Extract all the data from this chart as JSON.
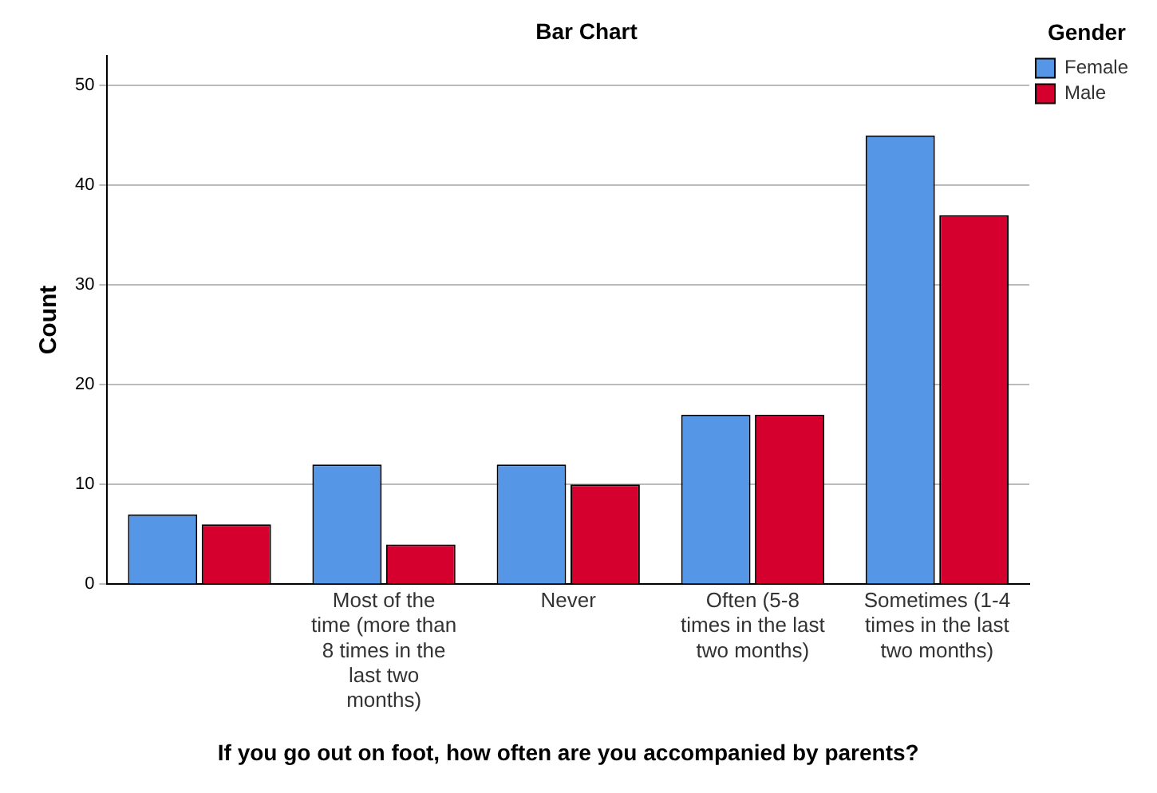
{
  "chart_data": {
    "type": "bar",
    "title": "Bar Chart",
    "xlabel": "If you go out on foot, how often are you accompanied by parents?",
    "ylabel": "Count",
    "legend_title": "Gender",
    "categories": [
      null,
      "Most of the time (more than 8 times in the last two months)",
      "Never",
      "Often (5-8 times in the last two months)",
      "Sometimes (1-4 times in the last two months)"
    ],
    "series": [
      {
        "name": "Female",
        "color": "#5596e6",
        "values": [
          7,
          12,
          12,
          17,
          45
        ]
      },
      {
        "name": "Male",
        "color": "#d6002e",
        "values": [
          6,
          4,
          10,
          17,
          37
        ]
      }
    ],
    "ylim": [
      0,
      53
    ],
    "yticks": [
      0,
      10,
      20,
      30,
      40,
      50
    ],
    "grid": "y",
    "legend": "top right"
  }
}
